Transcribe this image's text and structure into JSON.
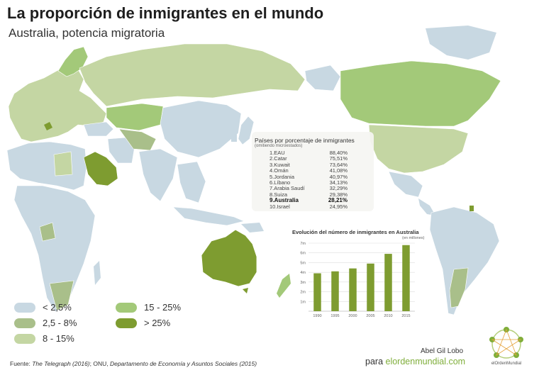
{
  "header": {
    "title": "La proporción de inmigrantes en el mundo",
    "subtitle": "Australia, potencia migratoria"
  },
  "colors": {
    "lt2_5": "#c8d8e2",
    "c2_5_8": "#a9bf8a",
    "c8_15": "#c4d6a3",
    "c15_25": "#a3c979",
    "gt25": "#7e9c30",
    "ocean": "#ffffff"
  },
  "legend": [
    {
      "label": "< 2,5%",
      "color": "#c8d8e2"
    },
    {
      "label": "2,5 - 8%",
      "color": "#a9bf8a"
    },
    {
      "label": "8 - 15%",
      "color": "#c4d6a3"
    },
    {
      "label": "15 - 25%",
      "color": "#a3c979"
    },
    {
      "label": "> 25%",
      "color": "#7e9c30"
    }
  ],
  "ranking": {
    "heading": "Países por porcentaje de inmigrantes",
    "subheading": "(omitiendo microestados)",
    "rows": [
      {
        "country": "1.EAU",
        "value": "88,40%"
      },
      {
        "country": "2.Catar",
        "value": "75,51%"
      },
      {
        "country": "3.Kuwait",
        "value": "73,64%"
      },
      {
        "country": "4.Omán",
        "value": "41,08%"
      },
      {
        "country": "5.Jordania",
        "value": "40,97%"
      },
      {
        "country": "6.Líbano",
        "value": "34,13%"
      },
      {
        "country": "7.Arabia Saudí",
        "value": "32,29%"
      },
      {
        "country": "8.Suiza",
        "value": "29,38%"
      },
      {
        "country": "9.Australia",
        "value": "28,21%"
      },
      {
        "country": "10.Israel",
        "value": "24,95%"
      }
    ]
  },
  "chart_data": {
    "type": "bar",
    "title": "Evolución del número de inmigrantes en Australia",
    "ylabel": "(en millones)",
    "categories": [
      "1990",
      "1995",
      "2000",
      "2005",
      "2010",
      "2015"
    ],
    "values": [
      3.9,
      4.1,
      4.4,
      4.9,
      5.9,
      6.8
    ],
    "yticks": [
      "1m",
      "2m",
      "3m",
      "4m",
      "5m",
      "6m",
      "7m"
    ],
    "ylim": [
      0,
      7
    ],
    "color": "#7e9c30"
  },
  "footer": {
    "source_prefix": "Fuente: ",
    "source_italic": "The Telegraph (2016)",
    "source_mid": "; ONU, ",
    "source_italic2": "Departamento de Economía y Asuntos Sociales (2015)",
    "author": "Abel Gil Lobo",
    "site_prefix": "para ",
    "site_name": "elordenmundial.com",
    "logo_text": "elOrdenMundial"
  }
}
